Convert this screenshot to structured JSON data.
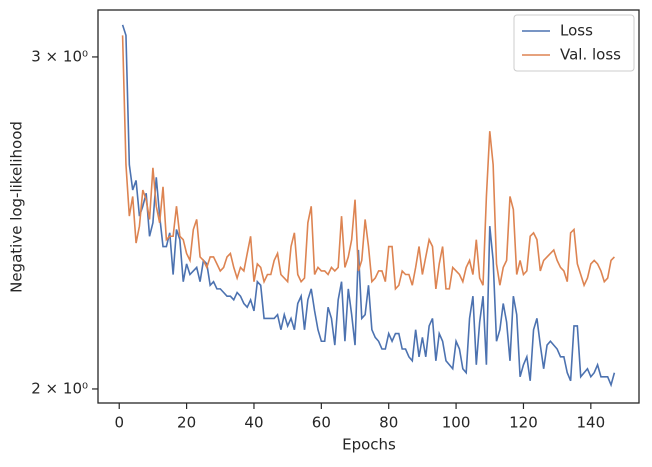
{
  "chart_data": {
    "type": "line",
    "xlabel": "Epochs",
    "ylabel": "Negative log-likelihood",
    "x": [
      1,
      2,
      3,
      4,
      5,
      6,
      7,
      8,
      9,
      10,
      11,
      12,
      13,
      14,
      15,
      16,
      17,
      18,
      19,
      20,
      21,
      22,
      23,
      24,
      25,
      26,
      27,
      28,
      29,
      30,
      31,
      32,
      33,
      34,
      35,
      36,
      37,
      38,
      39,
      40,
      41,
      42,
      43,
      44,
      45,
      46,
      47,
      48,
      49,
      50,
      51,
      52,
      53,
      54,
      55,
      56,
      57,
      58,
      59,
      60,
      61,
      62,
      63,
      64,
      65,
      66,
      67,
      68,
      69,
      70,
      71,
      72,
      73,
      74,
      75,
      76,
      77,
      78,
      79,
      80,
      81,
      82,
      83,
      84,
      85,
      86,
      87,
      88,
      89,
      90,
      91,
      92,
      93,
      94,
      95,
      96,
      97,
      98,
      99,
      100,
      101,
      102,
      103,
      104,
      105,
      106,
      107,
      108,
      109,
      110,
      111,
      112,
      113,
      114,
      115,
      116,
      117,
      118,
      119,
      120,
      121,
      122,
      123,
      124,
      125,
      126,
      127,
      128,
      129,
      130,
      131,
      132,
      133,
      134,
      135,
      136,
      137,
      138,
      139,
      140,
      141,
      142,
      143,
      144,
      145,
      146,
      147
    ],
    "series": [
      {
        "name": "Loss",
        "color": "#4c72b0",
        "values": [
          3.12,
          3.08,
          2.63,
          2.55,
          2.58,
          2.47,
          2.5,
          2.54,
          2.41,
          2.45,
          2.59,
          2.47,
          2.38,
          2.38,
          2.42,
          2.3,
          2.43,
          2.4,
          2.28,
          2.33,
          2.3,
          2.31,
          2.32,
          2.28,
          2.34,
          2.33,
          2.27,
          2.28,
          2.26,
          2.26,
          2.25,
          2.24,
          2.24,
          2.23,
          2.25,
          2.24,
          2.22,
          2.21,
          2.23,
          2.2,
          2.28,
          2.27,
          2.18,
          2.18,
          2.18,
          2.18,
          2.19,
          2.15,
          2.19,
          2.16,
          2.18,
          2.15,
          2.22,
          2.24,
          2.15,
          2.23,
          2.26,
          2.2,
          2.15,
          2.12,
          2.12,
          2.21,
          2.18,
          2.11,
          2.23,
          2.28,
          2.12,
          2.26,
          2.19,
          2.11,
          2.37,
          2.18,
          2.19,
          2.27,
          2.15,
          2.13,
          2.12,
          2.1,
          2.1,
          2.14,
          2.12,
          2.14,
          2.14,
          2.1,
          2.1,
          2.08,
          2.07,
          2.15,
          2.08,
          2.13,
          2.08,
          2.16,
          2.18,
          2.07,
          2.14,
          2.12,
          2.07,
          2.06,
          2.05,
          2.12,
          2.1,
          2.05,
          2.04,
          2.18,
          2.24,
          2.06,
          2.17,
          2.24,
          2.06,
          2.44,
          2.34,
          2.12,
          2.15,
          2.22,
          2.17,
          2.07,
          2.24,
          2.19,
          2.03,
          2.06,
          2.08,
          2.02,
          2.15,
          2.18,
          2.11,
          2.05,
          2.11,
          2.12,
          2.11,
          2.1,
          2.08,
          2.08,
          2.04,
          2.02,
          2.16,
          2.16,
          2.03,
          2.04,
          2.05,
          2.03,
          2.04,
          2.06,
          2.03,
          2.03,
          2.03,
          2.01,
          2.04
        ]
      },
      {
        "name": "Val. loss",
        "color": "#dd8452",
        "values": [
          3.08,
          2.63,
          2.47,
          2.53,
          2.39,
          2.44,
          2.55,
          2.52,
          2.46,
          2.62,
          2.5,
          2.45,
          2.56,
          2.4,
          2.41,
          2.41,
          2.5,
          2.41,
          2.4,
          2.36,
          2.34,
          2.43,
          2.46,
          2.35,
          2.34,
          2.32,
          2.35,
          2.35,
          2.33,
          2.31,
          2.32,
          2.35,
          2.36,
          2.32,
          2.29,
          2.32,
          2.31,
          2.36,
          2.41,
          2.28,
          2.33,
          2.32,
          2.28,
          2.3,
          2.3,
          2.34,
          2.36,
          2.3,
          2.29,
          2.28,
          2.38,
          2.42,
          2.3,
          2.28,
          2.29,
          2.45,
          2.5,
          2.3,
          2.32,
          2.31,
          2.31,
          2.3,
          2.32,
          2.31,
          2.32,
          2.47,
          2.32,
          2.35,
          2.4,
          2.52,
          2.31,
          2.34,
          2.46,
          2.38,
          2.28,
          2.29,
          2.31,
          2.31,
          2.28,
          2.38,
          2.38,
          2.26,
          2.27,
          2.31,
          2.3,
          2.3,
          2.27,
          2.32,
          2.38,
          2.3,
          2.35,
          2.4,
          2.38,
          2.26,
          2.33,
          2.38,
          2.26,
          2.26,
          2.32,
          2.31,
          2.3,
          2.28,
          2.32,
          2.34,
          2.3,
          2.4,
          2.29,
          2.27,
          2.53,
          2.74,
          2.63,
          2.33,
          2.27,
          2.32,
          2.34,
          2.53,
          2.49,
          2.3,
          2.34,
          2.3,
          2.31,
          2.41,
          2.42,
          2.4,
          2.31,
          2.34,
          2.35,
          2.36,
          2.37,
          2.34,
          2.32,
          2.31,
          2.28,
          2.42,
          2.43,
          2.33,
          2.3,
          2.27,
          2.29,
          2.33,
          2.34,
          2.33,
          2.31,
          2.28,
          2.29,
          2.34,
          2.35
        ]
      }
    ],
    "xlim": [
      -6.3,
      154.3
    ],
    "xticks": [
      0,
      20,
      40,
      60,
      80,
      100,
      120,
      140
    ],
    "ylim": [
      1.966,
      3.177
    ],
    "yscale": "log",
    "yticks": [
      {
        "value": 2,
        "label": "2 × 10⁰"
      },
      {
        "value": 3,
        "label": "3 × 10⁰"
      }
    ],
    "legend": "upper right"
  }
}
